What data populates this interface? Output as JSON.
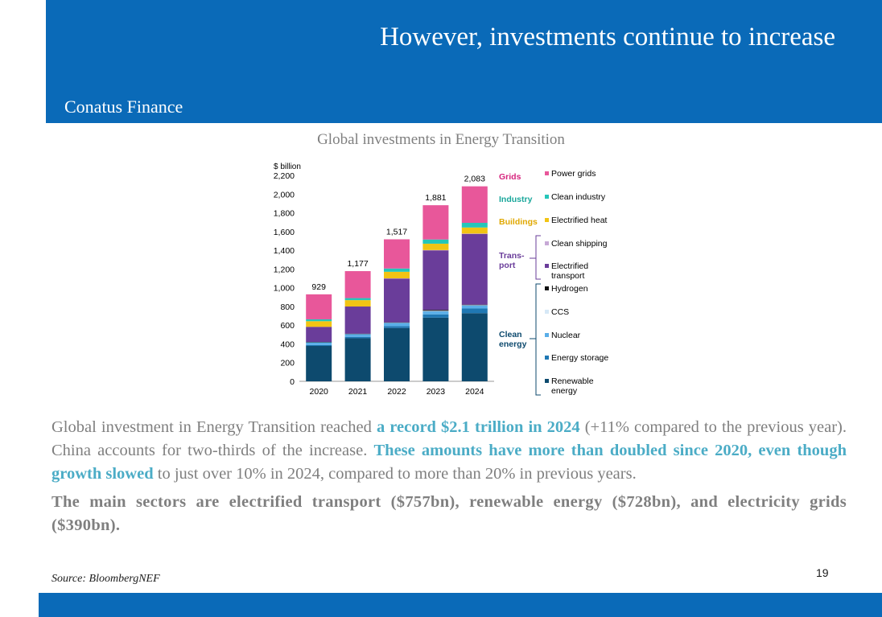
{
  "slide": {
    "title": "However, investments continue to increase",
    "company": "Conatus Finance",
    "chart_title": "Global investments in Energy Transition",
    "paragraph1": {
      "part1": "Global investment in Energy Transition reached ",
      "hl1": "a record $2.1 trillion in 2024",
      "part2": " (+11% compared to the previous year). China accounts for two-thirds of the increase. ",
      "hl2": "These amounts have more than doubled since 2020, even though growth slowed",
      "part3": " to just over 10% in 2024, compared to more than 20% in previous years."
    },
    "paragraph2": "The main sectors are electrified transport ($757bn), renewable energy ($728bn), and electricity grids ($390bn).",
    "source": "Source: BloombergNEF",
    "page_number": "19",
    "colors": {
      "brand_blue": "#0a6ab8",
      "highlight": "#4bacc6",
      "body_text": "#7f7f7f"
    }
  },
  "chart_data": {
    "type": "bar",
    "stacked": true,
    "ylabel": "$ billion",
    "ylim": [
      0,
      2200
    ],
    "yticks": [
      0,
      200,
      400,
      600,
      800,
      1000,
      1200,
      1400,
      1600,
      1800,
      2000,
      2200
    ],
    "yticklabels": [
      "0",
      "200",
      "400",
      "600",
      "800",
      "1,000",
      "1,200",
      "1,400",
      "1,600",
      "1,800",
      "2,000",
      "2,200"
    ],
    "categories": [
      "2020",
      "2021",
      "2022",
      "2023",
      "2024"
    ],
    "totals": [
      929,
      1177,
      1517,
      1881,
      2083
    ],
    "total_labels": [
      "929",
      "1,177",
      "1,517",
      "1,881",
      "2,083"
    ],
    "grid": false,
    "legend_position": "right",
    "series": [
      {
        "name": "Renewable energy",
        "color": "#0d4a6e",
        "values": [
          378,
          460,
          570,
          680,
          728
        ]
      },
      {
        "name": "Energy storage",
        "color": "#1f78b4",
        "values": [
          10,
          15,
          20,
          35,
          50
        ]
      },
      {
        "name": "Nuclear",
        "color": "#5aaee8",
        "values": [
          30,
          30,
          33,
          32,
          34
        ]
      },
      {
        "name": "CCS",
        "color": "#d6e8f6",
        "values": [
          2,
          3,
          5,
          6,
          2
        ]
      },
      {
        "name": "Hydrogen",
        "color": "#111111",
        "values": [
          1,
          1,
          2,
          10,
          5
        ]
      },
      {
        "name": "Electrified transport",
        "color": "#6a3d9a",
        "values": [
          161,
          290,
          469,
          637,
          757
        ]
      },
      {
        "name": "Clean shipping",
        "color": "#c7a9d6",
        "values": [
          0,
          0,
          1,
          2,
          2
        ]
      },
      {
        "name": "Electrified heat",
        "color": "#f2c414",
        "values": [
          60,
          68,
          70,
          68,
          65
        ]
      },
      {
        "name": "Clean industry",
        "color": "#26c6b9",
        "values": [
          20,
          22,
          35,
          45,
          50
        ]
      },
      {
        "name": "Power grids",
        "color": "#e8579a",
        "values": [
          267,
          288,
          312,
          366,
          390
        ]
      }
    ],
    "legend_items": [
      {
        "name": "Power grids",
        "color": "#e8579a"
      },
      {
        "name": "Clean industry",
        "color": "#26c6b9"
      },
      {
        "name": "Electrified heat",
        "color": "#f2c414"
      },
      {
        "name": "Clean shipping",
        "color": "#c7a9d6"
      },
      {
        "name": "Electrified transport",
        "color": "#6a3d9a"
      },
      {
        "name": "Hydrogen",
        "color": "#111111"
      },
      {
        "name": "CCS",
        "color": "#d6e8f6"
      },
      {
        "name": "Nuclear",
        "color": "#5aaee8"
      },
      {
        "name": "Energy storage",
        "color": "#1f78b4"
      },
      {
        "name": "Renewable energy",
        "color": "#0d4a6e"
      }
    ],
    "group_labels": [
      {
        "text": "Grids",
        "color": "#d6247d"
      },
      {
        "text": "Industry",
        "color": "#1aa79b"
      },
      {
        "text": "Buildings",
        "color": "#e0a800"
      },
      {
        "text": "Trans-port",
        "color": "#6a3d9a"
      },
      {
        "text": "Clean energy",
        "color": "#0d4a6e"
      }
    ]
  }
}
